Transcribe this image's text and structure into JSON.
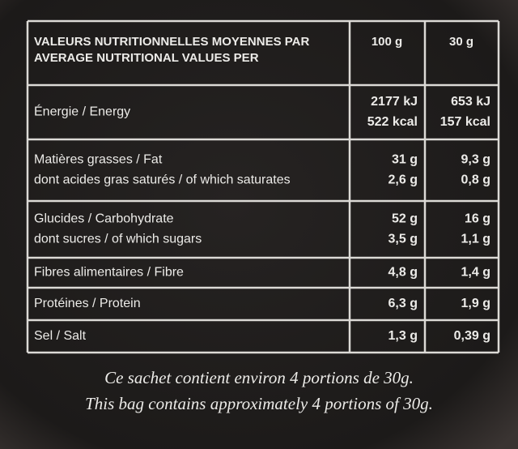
{
  "header": {
    "title": [
      "VALEURS NUTRITIONNELLES MOYENNES PAR",
      "AVERAGE NUTRITIONAL VALUES PER"
    ],
    "columns": [
      "100 g",
      "30 g"
    ]
  },
  "table": {
    "rows": [
      {
        "label": [
          "Énergie / Energy"
        ],
        "per_100g": [
          "2177 kJ",
          "522 kcal"
        ],
        "per_30g": [
          "653 kJ",
          "157 kcal"
        ]
      },
      {
        "label": [
          "Matières grasses / Fat",
          "dont acides gras saturés / of which saturates"
        ],
        "per_100g": [
          "31 g",
          "2,6 g"
        ],
        "per_30g": [
          "9,3 g",
          "0,8 g"
        ]
      },
      {
        "label": [
          "Glucides / Carbohydrate",
          "dont sucres / of which sugars"
        ],
        "per_100g": [
          "52 g",
          "3,5 g"
        ],
        "per_30g": [
          "16 g",
          "1,1 g"
        ]
      },
      {
        "label": [
          "Fibres alimentaires / Fibre"
        ],
        "per_100g": [
          "4,8 g"
        ],
        "per_30g": [
          "1,4 g"
        ]
      },
      {
        "label": [
          "Protéines / Protein"
        ],
        "per_100g": [
          "6,3 g"
        ],
        "per_30g": [
          "1,9 g"
        ]
      },
      {
        "label": [
          "Sel / Salt"
        ],
        "per_100g": [
          "1,3 g"
        ],
        "per_30g": [
          "0,39 g"
        ]
      }
    ]
  },
  "footer": [
    "Ce sachet contient environ 4 portions de 30g.",
    "This bag contains approximately 4 portions of 30g."
  ]
}
